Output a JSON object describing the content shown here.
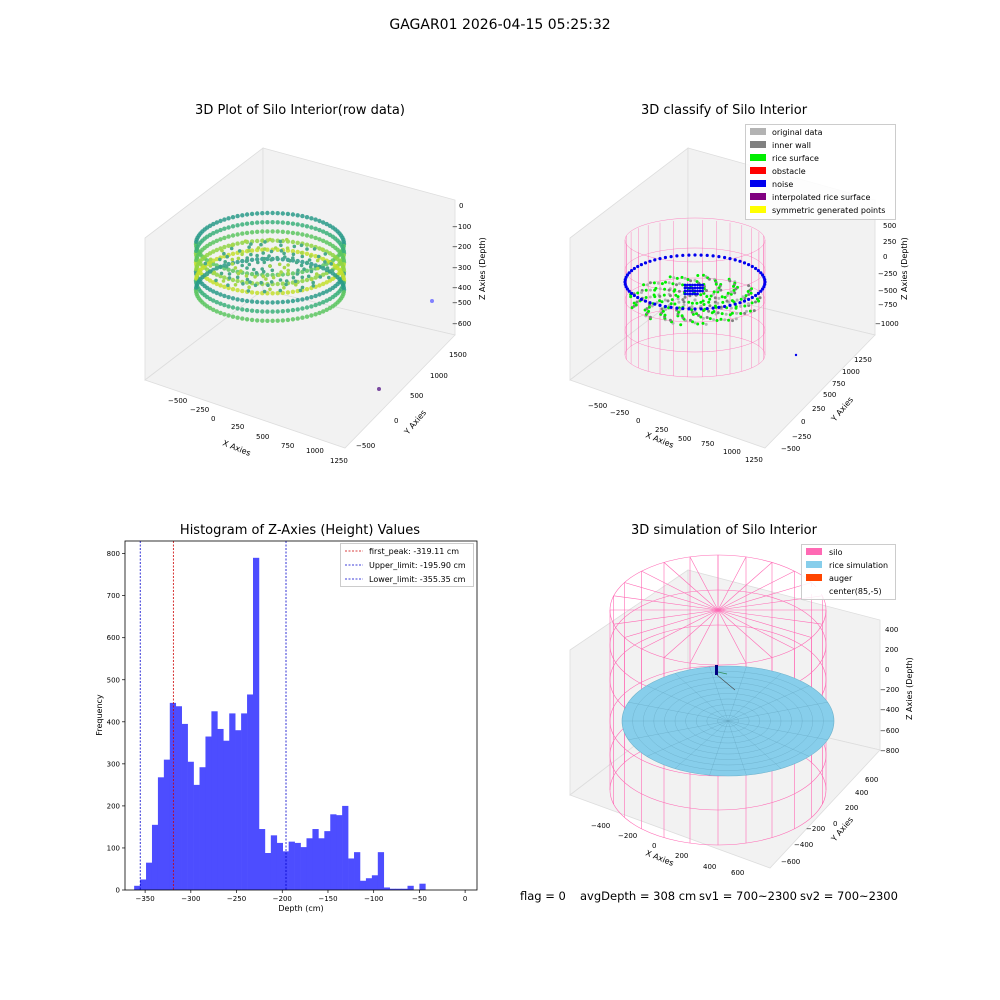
{
  "figure_title": "GAGAR01 2026-04-15 05:25:32",
  "footer": {
    "flag": "flag = 0",
    "avg": "avgDepth = 308 cm",
    "sv1": "sv1 = 700~2300",
    "sv2": "sv2 = 700~2300"
  },
  "colors": {
    "hist_bar": "#4d4dff",
    "first_peak": "#cc0000",
    "limit_line": "#0000cc",
    "original": "#b3b3b3",
    "inner_wall": "#808080",
    "rice_surface": "#00ee00",
    "obstacle": "#ff0000",
    "noise": "#0000ee",
    "interpolated": "#800080",
    "symmetric": "#ffff00",
    "silo": "#ff69b4",
    "rice_sim": "#87ceeb",
    "auger": "#ff4500"
  },
  "chart_data": [
    {
      "type": "scatter",
      "title": "3D Plot of Silo Interior(row data)",
      "xlabel": "X Axies",
      "ylabel": "Y Axies",
      "zlabel": "Z Axies (Depth)",
      "x_ticks": [
        "−500",
        "−250",
        "0",
        "250",
        "500",
        "750",
        "1000",
        "1250"
      ],
      "y_ticks": [
        "−500",
        "0",
        "500",
        "1000",
        "1500"
      ],
      "z_ticks": [
        "0",
        "−100",
        "−200",
        "−300",
        "−400",
        "−500",
        "−600"
      ]
    },
    {
      "type": "scatter",
      "title": "3D classify of Silo Interior",
      "xlabel": "X Axies",
      "ylabel": "Y Axies",
      "zlabel": "Z Axies (Depth)",
      "x_ticks": [
        "−500",
        "−250",
        "0",
        "250",
        "500",
        "750",
        "1000",
        "1250"
      ],
      "y_ticks": [
        "−500",
        "−250",
        "0",
        "250",
        "500",
        "750",
        "1000",
        "1250"
      ],
      "z_ticks": [
        "500",
        "250",
        "0",
        "−250",
        "−500",
        "−750",
        "−1000"
      ],
      "legend": [
        {
          "label": "original data",
          "color": "#b3b3b3"
        },
        {
          "label": "inner wall",
          "color": "#808080"
        },
        {
          "label": "rice surface",
          "color": "#00ee00"
        },
        {
          "label": "obstacle",
          "color": "#ff0000"
        },
        {
          "label": "noise",
          "color": "#0000ee"
        },
        {
          "label": "interpolated rice surface",
          "color": "#800080"
        },
        {
          "label": "symmetric generated points",
          "color": "#ffff00"
        }
      ]
    },
    {
      "type": "bar",
      "title": "Histogram of Z-Axies (Height) Values",
      "xlabel": "Depth (cm)",
      "ylabel": "Frequency",
      "xlim": [
        -372,
        13
      ],
      "ylim": [
        0,
        830
      ],
      "x_ticks": [
        -350,
        -300,
        -250,
        -200,
        -150,
        -100,
        -50,
        0
      ],
      "x_tick_labels": [
        "−350",
        "−300",
        "−250",
        "−200",
        "−150",
        "−100",
        "−50",
        "0"
      ],
      "y_ticks": [
        0,
        100,
        200,
        300,
        400,
        500,
        600,
        700,
        800
      ],
      "bin_start": -362,
      "bin_width": 6.5,
      "values": [
        10,
        25,
        65,
        155,
        268,
        310,
        445,
        437,
        395,
        305,
        250,
        292,
        365,
        425,
        383,
        355,
        420,
        380,
        420,
        465,
        790,
        145,
        88,
        130,
        112,
        92,
        115,
        112,
        102,
        123,
        145,
        123,
        140,
        180,
        178,
        200,
        75,
        90,
        22,
        28,
        35,
        90,
        6,
        3,
        3,
        3,
        10,
        0,
        15
      ],
      "lines": [
        {
          "x": -319.11,
          "label": "first_peak: -319.11 cm",
          "color": "#cc0000"
        },
        {
          "x": -195.9,
          "label": "Upper_limit: -195.90 cm",
          "color": "#0000cc"
        },
        {
          "x": -355.35,
          "label": "Lower_limit: -355.35 cm",
          "color": "#0000cc"
        }
      ]
    },
    {
      "type": "scatter",
      "title": "3D simulation of Silo Interior",
      "xlabel": "X Axies",
      "ylabel": "Y Axies",
      "zlabel": "Z Axies (Depth)",
      "x_ticks": [
        "−400",
        "−200",
        "0",
        "200",
        "400",
        "600"
      ],
      "y_ticks": [
        "−600",
        "−400",
        "−200",
        "0",
        "200",
        "400",
        "600"
      ],
      "z_ticks": [
        "400",
        "200",
        "0",
        "−200",
        "−400",
        "−600",
        "−800"
      ],
      "legend": [
        {
          "label": "silo",
          "color": "#ff69b4"
        },
        {
          "label": "rice simulation",
          "color": "#87ceeb"
        },
        {
          "label": "auger",
          "color": "#ff4500"
        },
        {
          "label": "center(85,-5)",
          "color": "#ffffff"
        }
      ]
    }
  ]
}
